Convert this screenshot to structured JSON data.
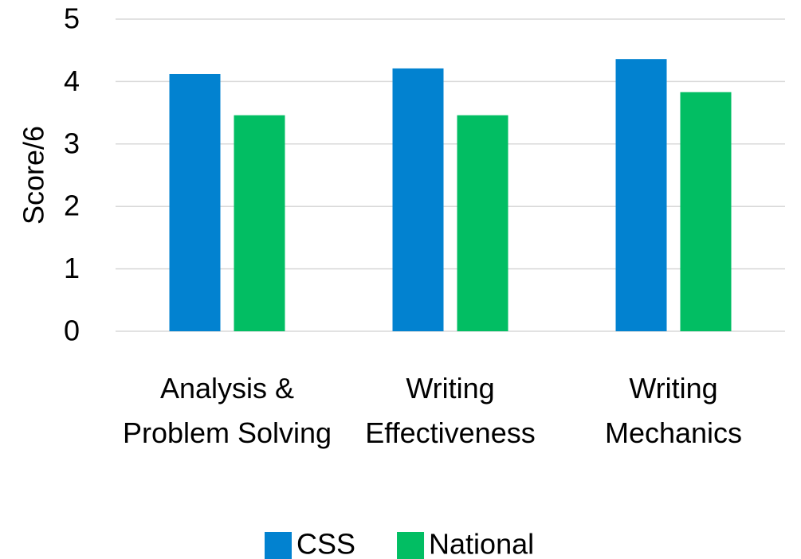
{
  "chart_data": {
    "type": "bar",
    "y_label": "Score/6",
    "categories": [
      "Analysis & Problem Solving",
      "Writing Effectiveness",
      "Writing Mechanics"
    ],
    "series": [
      {
        "name": "CSS",
        "color": "#0282d0",
        "values": [
          4.12,
          4.21,
          4.36
        ]
      },
      {
        "name": "National",
        "color": "#02be63",
        "values": [
          3.46,
          3.46,
          3.83
        ]
      }
    ],
    "ylim": [
      0,
      5
    ],
    "yticks": [
      0,
      1,
      2,
      3,
      4,
      5
    ],
    "grid": true,
    "legend": "bottom"
  }
}
